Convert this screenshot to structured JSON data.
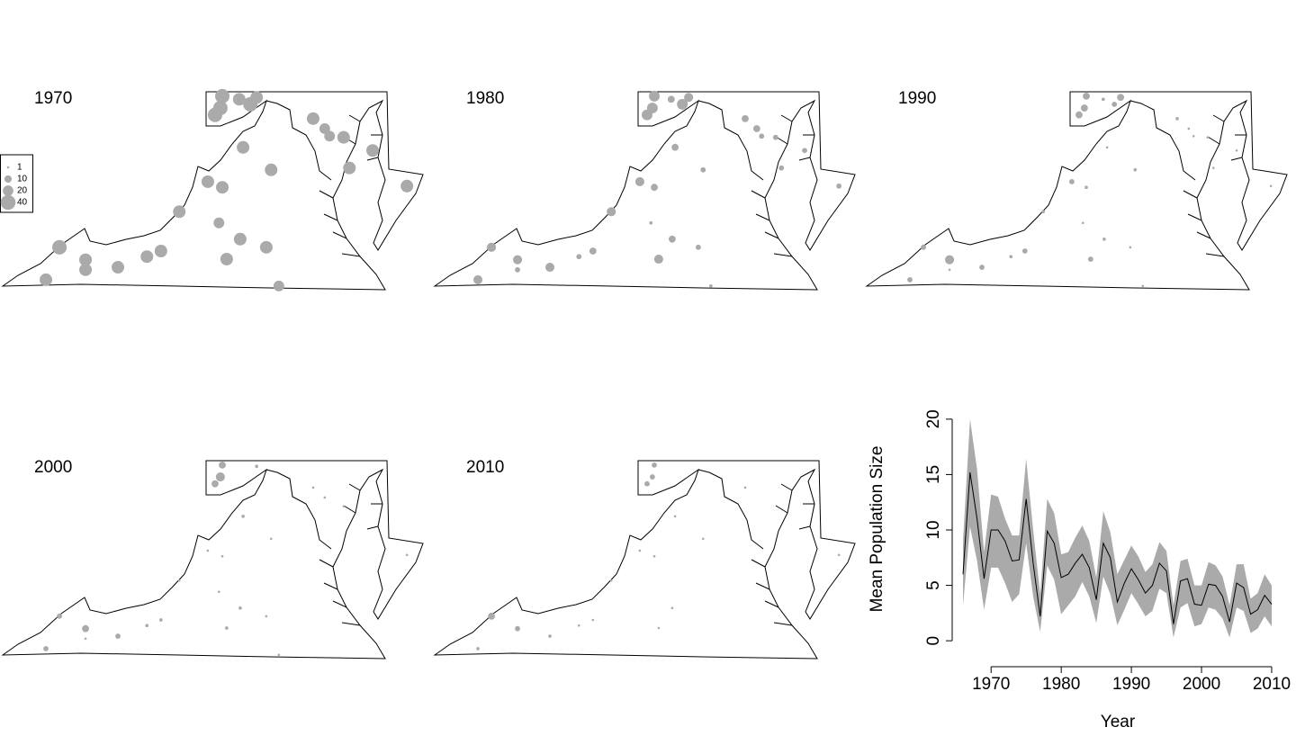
{
  "chart_data": [
    {
      "type": "bubble-map",
      "title": "1970",
      "color": "#aaaaaa",
      "legend": {
        "values": [
          1,
          10,
          20,
          40
        ]
      },
      "x": [
        -82.81,
        -82.53,
        -81.99,
        -81.99,
        -81.32,
        -80.72,
        -80.43,
        -80.05,
        -79.46,
        -79.16,
        -79.23,
        -78.79,
        -79.07,
        -78.25,
        -77.99,
        -78.73,
        -78.15,
        -79.31,
        -79.2,
        -79.16,
        -78.81,
        -78.58,
        -78.45,
        -77.28,
        -77.04,
        -76.94,
        -76.65,
        -76.05,
        -76.53,
        -75.34
      ],
      "y": [
        36.66,
        37.18,
        36.98,
        36.82,
        36.86,
        37.03,
        37.12,
        37.75,
        38.23,
        38.14,
        37.57,
        37.31,
        36.99,
        37.18,
        36.56,
        38.78,
        38.42,
        39.3,
        39.41,
        39.6,
        39.55,
        39.47,
        39.58,
        39.24,
        39.08,
        38.96,
        38.94,
        38.73,
        38.45,
        38.16
      ],
      "values": [
        29,
        38,
        29,
        29,
        29,
        29,
        29,
        29,
        29,
        29,
        21,
        29,
        29,
        29,
        21,
        29,
        29,
        38,
        38,
        38,
        29,
        38,
        29,
        29,
        21,
        21,
        29,
        29,
        29,
        29
      ]
    },
    {
      "type": "bubble-map",
      "title": "1980",
      "color": "#aaaaaa",
      "x": [
        -82.81,
        -82.53,
        -81.99,
        -81.99,
        -81.32,
        -80.72,
        -80.43,
        -80.05,
        -79.46,
        -79.16,
        -79.23,
        -78.79,
        -79.07,
        -78.25,
        -77.99,
        -78.73,
        -78.15,
        -79.31,
        -79.2,
        -79.16,
        -78.81,
        -78.58,
        -78.45,
        -77.28,
        -77.04,
        -76.94,
        -76.65,
        -76.05,
        -76.53,
        -75.34
      ],
      "y": [
        36.66,
        37.18,
        36.98,
        36.82,
        36.86,
        37.03,
        37.12,
        37.75,
        38.23,
        38.14,
        37.57,
        37.31,
        36.99,
        37.18,
        36.56,
        38.78,
        38.42,
        39.3,
        39.41,
        39.6,
        39.55,
        39.47,
        39.58,
        39.24,
        39.08,
        38.96,
        38.94,
        38.73,
        38.45,
        38.16
      ],
      "values": [
        15,
        15,
        15,
        5,
        15,
        5,
        9,
        15,
        15,
        9,
        2,
        9,
        15,
        5,
        2,
        9,
        5,
        21,
        21,
        21,
        9,
        21,
        15,
        9,
        9,
        5,
        5,
        5,
        5,
        5
      ]
    },
    {
      "type": "bubble-map",
      "title": "1990",
      "color": "#aaaaaa",
      "x": [
        -82.81,
        -82.53,
        -81.99,
        -81.99,
        -81.32,
        -80.72,
        -80.43,
        -80.05,
        -79.46,
        -79.16,
        -79.23,
        -78.79,
        -79.07,
        -78.25,
        -77.99,
        -78.73,
        -78.15,
        -79.31,
        -79.2,
        -79.16,
        -78.81,
        -78.58,
        -78.45,
        -77.28,
        -77.04,
        -76.94,
        -76.65,
        -76.05,
        -76.53,
        -75.34
      ],
      "y": [
        36.66,
        37.18,
        36.98,
        36.82,
        36.86,
        37.03,
        37.12,
        37.75,
        38.23,
        38.14,
        37.57,
        37.31,
        36.99,
        37.18,
        36.56,
        38.78,
        38.42,
        39.3,
        39.41,
        39.6,
        39.55,
        39.47,
        39.58,
        39.24,
        39.08,
        38.96,
        38.94,
        38.73,
        38.45,
        38.16
      ],
      "values": [
        5,
        5,
        15,
        1,
        5,
        2,
        5,
        2,
        5,
        2,
        1,
        2,
        5,
        1,
        1,
        1,
        2,
        9,
        9,
        9,
        2,
        5,
        9,
        2,
        1,
        1,
        1,
        1,
        1,
        1
      ]
    },
    {
      "type": "bubble-map",
      "title": "2000",
      "color": "#aaaaaa",
      "x": [
        -82.81,
        -82.53,
        -81.99,
        -81.99,
        -81.32,
        -80.72,
        -80.43,
        -80.05,
        -79.46,
        -79.16,
        -79.23,
        -78.79,
        -79.07,
        -78.25,
        -77.99,
        -78.73,
        -78.15,
        -79.31,
        -79.2,
        -79.16,
        -78.81,
        -78.58,
        -78.45,
        -77.28,
        -77.04,
        -76.94,
        -76.65,
        -76.05,
        -76.53,
        -75.34
      ],
      "y": [
        36.66,
        37.18,
        36.98,
        36.82,
        36.86,
        37.03,
        37.12,
        37.75,
        38.23,
        38.14,
        37.57,
        37.31,
        36.99,
        37.18,
        36.56,
        38.78,
        38.42,
        39.3,
        39.41,
        39.6,
        39.55,
        39.47,
        39.58,
        39.24,
        39.08,
        38.96,
        38.94,
        38.73,
        38.45,
        38.16
      ],
      "values": [
        5,
        5,
        9,
        1,
        5,
        2,
        2,
        1,
        1,
        1,
        1,
        2,
        2,
        1,
        1,
        2,
        1,
        9,
        15,
        9,
        null,
        null,
        2,
        1,
        1,
        null,
        1,
        null,
        null,
        1
      ]
    },
    {
      "type": "bubble-map",
      "title": "2010",
      "color": "#aaaaaa",
      "x": [
        -82.81,
        -82.53,
        -81.99,
        -81.99,
        -81.32,
        -80.72,
        -80.43,
        -80.05,
        -79.46,
        -79.16,
        -79.23,
        -78.79,
        -79.07,
        -78.25,
        -77.99,
        -78.73,
        -78.15,
        -79.31,
        -79.2,
        -79.16,
        -78.81,
        -78.58,
        -78.45,
        -77.28,
        -77.04,
        -76.94,
        -76.65,
        -76.05,
        -76.53,
        -75.34
      ],
      "y": [
        36.66,
        37.18,
        36.98,
        36.82,
        36.86,
        37.03,
        37.12,
        37.75,
        38.23,
        38.14,
        37.57,
        37.31,
        36.99,
        37.18,
        36.56,
        38.78,
        38.42,
        39.3,
        39.41,
        39.6,
        39.55,
        39.47,
        39.58,
        39.24,
        39.08,
        38.96,
        38.94,
        38.73,
        38.45,
        38.16
      ],
      "values": [
        2,
        9,
        5,
        null,
        2,
        1,
        1,
        1,
        1,
        1,
        null,
        1,
        1,
        null,
        null,
        1,
        1,
        5,
        5,
        5,
        null,
        null,
        null,
        1,
        null,
        null,
        null,
        null,
        null,
        1
      ]
    },
    {
      "type": "line",
      "x_label": "Year",
      "y_label": "Mean Population Size",
      "x": [
        1966,
        1967,
        1968,
        1969,
        1970,
        1971,
        1972,
        1973,
        1974,
        1975,
        1976,
        1977,
        1978,
        1979,
        1980,
        1981,
        1982,
        1983,
        1984,
        1985,
        1986,
        1987,
        1988,
        1989,
        1990,
        1991,
        1992,
        1993,
        1994,
        1995,
        1996,
        1997,
        1998,
        1999,
        2000,
        2001,
        2002,
        2003,
        2004,
        2005,
        2006,
        2007,
        2008,
        2009,
        2010
      ],
      "series": [
        {
          "color": "#000000",
          "band_color": "#aaaaaa",
          "values": [
            6,
            15.2,
            11,
            5.6,
            10,
            10,
            9,
            7.2,
            7.3,
            12.8,
            7,
            2.2,
            9.9,
            8.8,
            5.7,
            6,
            7,
            7.8,
            6.6,
            3.7,
            8.8,
            7.5,
            3.5,
            5.2,
            6.5,
            5.5,
            4.3,
            5,
            7,
            6.3,
            1.5,
            5.4,
            5.6,
            3.3,
            3.2,
            5.1,
            5,
            4,
            1.7,
            5.2,
            4.8,
            2.4,
            2.8,
            4.1,
            3.3
          ],
          "upper": [
            9,
            20,
            15.5,
            8,
            13.2,
            13,
            11,
            9.5,
            9.5,
            16.4,
            10,
            4.2,
            12.8,
            11.5,
            7.8,
            8,
            9.3,
            10.4,
            9,
            5.7,
            11.7,
            9.8,
            6,
            7.3,
            8.6,
            7.6,
            6.2,
            6.9,
            8.9,
            8.1,
            3.2,
            7.2,
            7.4,
            5,
            5,
            7.1,
            6.8,
            5.8,
            3.2,
            6.9,
            6.9,
            3.8,
            4.3,
            6,
            5
          ],
          "lower": [
            3.2,
            10.3,
            7.2,
            2.8,
            6.6,
            6.6,
            5.2,
            3.5,
            4.2,
            8.8,
            4,
            0.8,
            6.8,
            5.5,
            2.4,
            3.2,
            4,
            5.3,
            4,
            1.6,
            5.8,
            4.2,
            1.4,
            2.8,
            4.3,
            3.3,
            2.2,
            2.7,
            4.7,
            4.3,
            0.3,
            3,
            3.4,
            1.3,
            1.5,
            3,
            2.8,
            2,
            0.3,
            3,
            2.7,
            0.7,
            1.1,
            2.2,
            1.3
          ]
        }
      ],
      "xlim": [
        1964.2,
        2011.8
      ],
      "xticks": [
        1970,
        1980,
        1990,
        2000,
        2010
      ],
      "ylim": [
        -0.8,
        20.8
      ],
      "yticks": [
        0,
        5,
        10,
        15,
        20
      ]
    }
  ]
}
